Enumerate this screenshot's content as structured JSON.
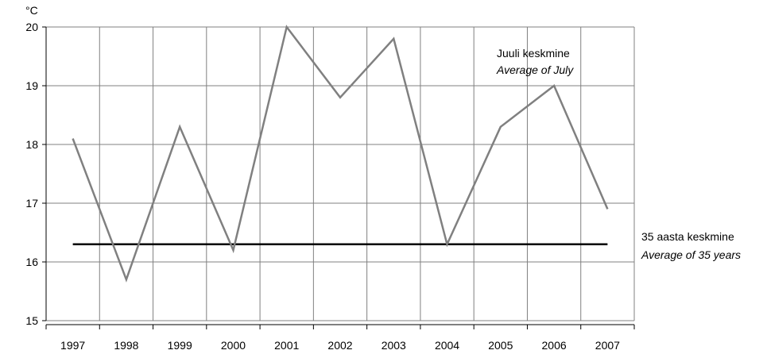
{
  "chart_data": {
    "type": "line",
    "ylabel": "°C",
    "ylim": [
      15,
      20
    ],
    "yticks": [
      15,
      16,
      17,
      18,
      19,
      20
    ],
    "categories": [
      "1997",
      "1998",
      "1999",
      "2000",
      "2001",
      "2002",
      "2003",
      "2004",
      "2005",
      "2006",
      "2007"
    ],
    "series": [
      {
        "name": "Juuli keskmine",
        "name_en": "Average of July",
        "values": [
          18.1,
          15.7,
          18.3,
          16.2,
          20.0,
          18.8,
          19.8,
          16.3,
          18.3,
          19.0,
          16.9
        ],
        "color": "#808080"
      },
      {
        "name": "35 aasta keskmine",
        "name_en": "Average of 35 years",
        "values": [
          16.3,
          16.3,
          16.3,
          16.3,
          16.3,
          16.3,
          16.3,
          16.3,
          16.3,
          16.3,
          16.3
        ],
        "color": "#000000"
      }
    ],
    "grid": true
  }
}
